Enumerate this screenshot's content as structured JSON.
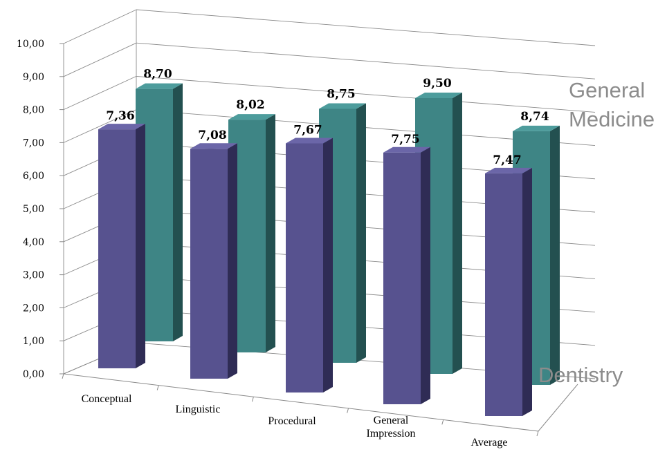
{
  "chart_data": {
    "type": "bar",
    "subtype": "3d-clustered-depth",
    "categories": [
      "Conceptual",
      "Linguistic",
      "Procedural",
      "General Impression",
      "Average"
    ],
    "series": [
      {
        "name": "Dentistry",
        "values": [
          7.36,
          7.08,
          7.67,
          7.75,
          7.47
        ],
        "labels": [
          "7,36",
          "7,08",
          "7,67",
          "7,75",
          "7,47"
        ]
      },
      {
        "name": "General Medicine",
        "values": [
          8.7,
          8.02,
          8.75,
          9.5,
          8.74
        ],
        "labels": [
          "8,70",
          "8,02",
          "8,75",
          "9,50",
          "8,74"
        ]
      }
    ],
    "y_ticks": [
      "0,00",
      "1,00",
      "2,00",
      "3,00",
      "4,00",
      "5,00",
      "6,00",
      "7,00",
      "8,00",
      "9,00",
      "10,00"
    ],
    "ylim": [
      0,
      10
    ],
    "grid": true,
    "legend": "depth-axis labels at right",
    "colors": {
      "Dentistry": "#57528f",
      "General Medicine": "#3e8585"
    }
  }
}
